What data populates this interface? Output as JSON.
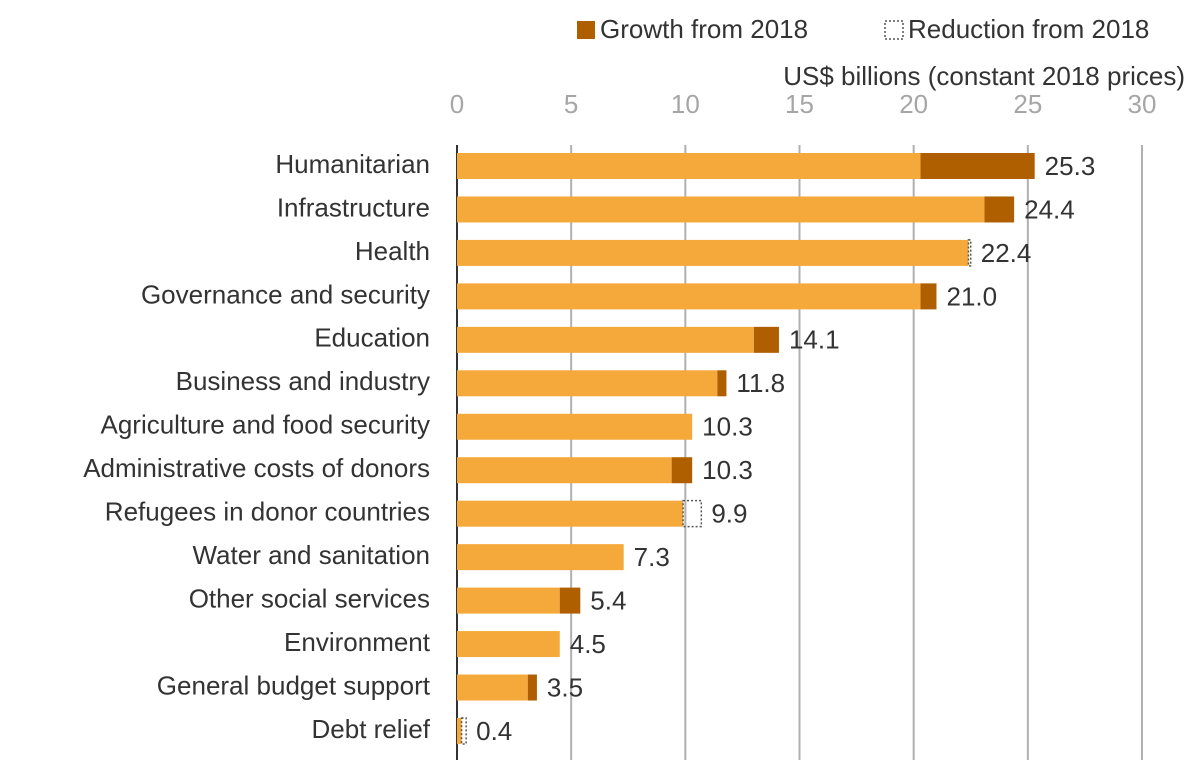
{
  "chart_data": {
    "type": "stacked-barh",
    "axis_label": "US$ billions (constant 2018 prices)",
    "categories": [
      "Humanitarian",
      "Infrastructure",
      "Health",
      "Governance and security",
      "Education",
      "Business and industry",
      "Agriculture and food security",
      "Administrative costs of donors",
      "Refugees in donor countries",
      "Water and sanitation",
      "Other social services",
      "Environment",
      "General budget support",
      "Debt relief"
    ],
    "series": [
      {
        "color": "#f6a93b",
        "values": [
          20.3,
          23.1,
          22.4,
          20.3,
          13.0,
          11.4,
          10.3,
          9.4,
          9.9,
          7.3,
          4.5,
          4.5,
          3.1,
          0.2
        ]
      },
      {
        "name": "Growth from 2018",
        "color": "#b05f00",
        "values": [
          5.0,
          1.3,
          0,
          0.7,
          1.1,
          0.4,
          0,
          0.9,
          0,
          0,
          0.9,
          0,
          0.4,
          0
        ]
      },
      {
        "name": "Reduction from 2018",
        "color": "#555555",
        "style": "dotted",
        "values": [
          0,
          0,
          0.1,
          0,
          0,
          0,
          0,
          0,
          0.8,
          0,
          0,
          0,
          0,
          0.2
        ]
      }
    ],
    "totals": {
      "values": [
        25.3,
        24.4,
        22.4,
        21,
        14.1,
        11.8,
        10.3,
        10.3,
        9.9,
        7.3,
        5.4,
        4.5,
        3.5,
        0.4
      ],
      "value_labels": [
        "25.3",
        "24.4",
        "22.4",
        "21.0",
        "14.1",
        "11.8",
        "10.3",
        "10.3",
        "9.9",
        "7.3",
        "5.4",
        "4.5",
        "3.5",
        "0.4"
      ]
    },
    "xlim": [
      0,
      30
    ],
    "xticks": [
      0,
      5,
      10,
      15,
      20,
      25,
      30
    ],
    "grid": true
  }
}
